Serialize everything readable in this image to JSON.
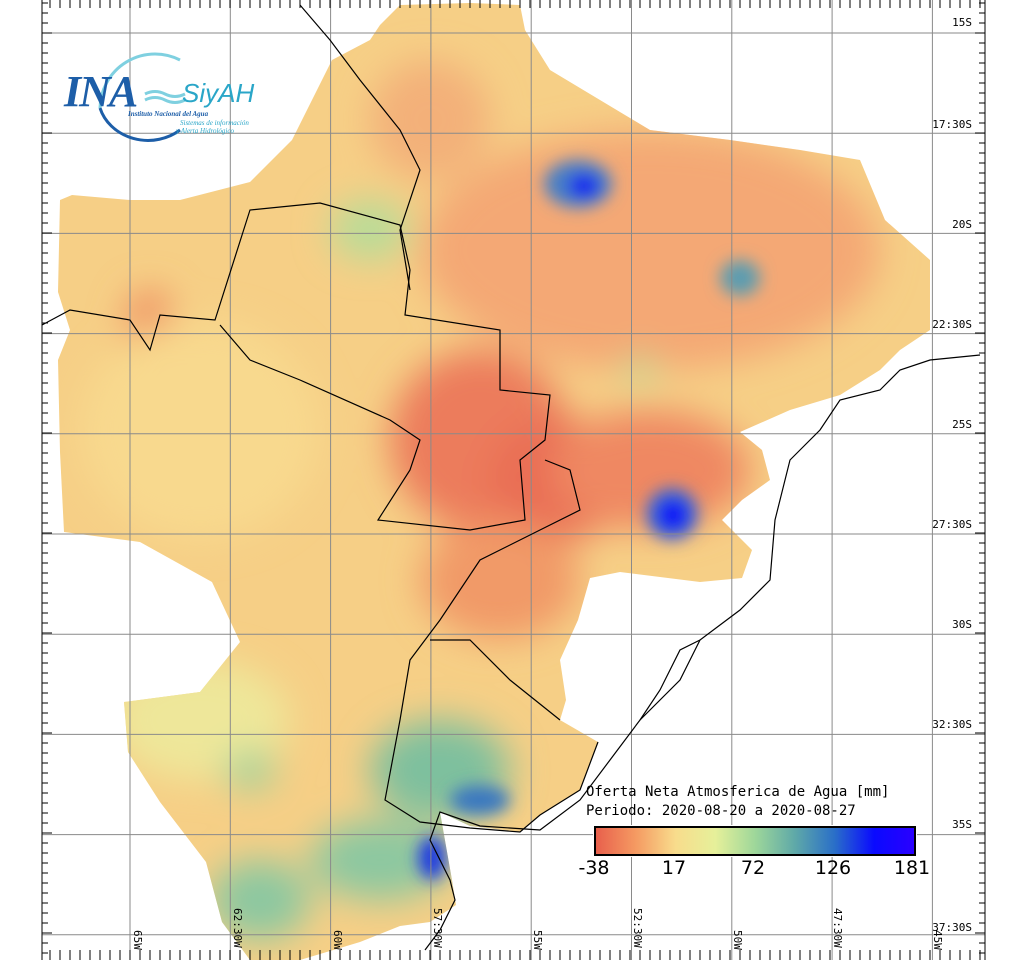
{
  "logo": {
    "acronym": "INA",
    "system": "SiyAH",
    "institution": "Instituto Nacional del Agua",
    "subtitle_line1": "Sistemas de información",
    "subtitle_line2": "y Alerta Hidrológico"
  },
  "legend": {
    "title": "Oferta Neta Atmosferica de Agua [mm]",
    "period": "Periodo: 2020-08-20 a 2020-08-27",
    "ticks": [
      "-38",
      "17",
      "72",
      "126",
      "181"
    ],
    "colors": [
      "#e8604c",
      "#f59a62",
      "#f8dc8c",
      "#e6f09a",
      "#9ed79a",
      "#5fa9a8",
      "#2a6fc8",
      "#0a0aff",
      "#2a00ff"
    ]
  },
  "axes": {
    "latitude_labels": [
      "15S",
      "17:30S",
      "20S",
      "22:30S",
      "25S",
      "27:30S",
      "30S",
      "32:30S",
      "35S",
      "37:30S"
    ],
    "longitude_labels": [
      "65W",
      "62:30W",
      "60W",
      "57:30W",
      "55W",
      "52:30W",
      "50W",
      "47:30W",
      "45W"
    ]
  }
}
